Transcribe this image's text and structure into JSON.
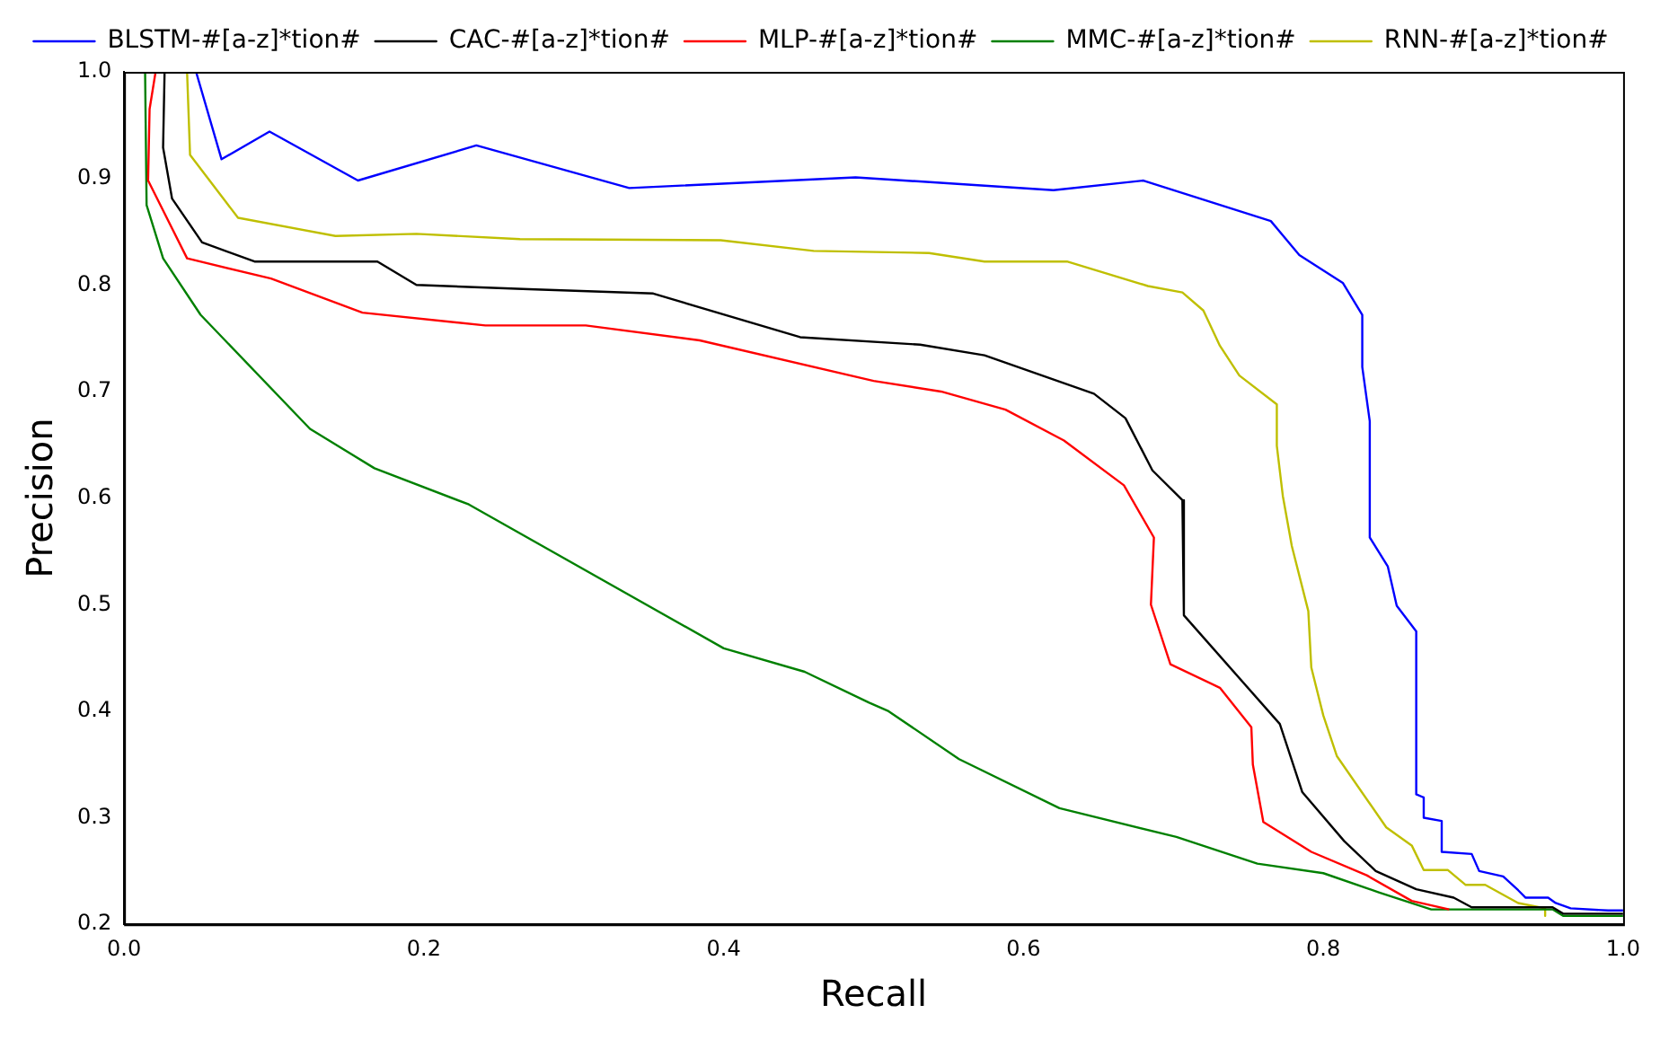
{
  "chart_data": {
    "type": "line",
    "xlabel": "Recall",
    "ylabel": "Precision",
    "xlim": [
      0,
      1
    ],
    "ylim": [
      0.2,
      1
    ],
    "xticks": [
      {
        "value": 0,
        "label": "0.0"
      },
      0.2,
      0.4,
      0.6,
      0.8,
      {
        "value": 1,
        "label": "1.0"
      }
    ],
    "yticks": [
      0.2,
      0.3,
      0.4,
      0.5,
      0.6,
      0.7,
      0.8,
      0.9,
      {
        "value": 1,
        "label": "1.0"
      }
    ],
    "grid": false,
    "legend": "top",
    "marker": "none",
    "line_style": "solid",
    "series": [
      {
        "name": "BLSTM-#[a-z]*tion#",
        "color": "#0000ff",
        "x": [
          0.048,
          0.065,
          0.097,
          0.156,
          0.235,
          0.337,
          0.488,
          0.62,
          0.68,
          0.765,
          0.784,
          0.813,
          0.826,
          0.826,
          0.831,
          0.831,
          0.843,
          0.849,
          0.862,
          0.862,
          0.867,
          0.867,
          0.879,
          0.879,
          0.899,
          0.904,
          0.92,
          0.93,
          0.935,
          0.95,
          0.955,
          0.965,
          0.99,
          1.0
        ],
        "values": [
          1.0,
          0.918,
          0.944,
          0.898,
          0.931,
          0.891,
          0.901,
          0.889,
          0.898,
          0.86,
          0.828,
          0.802,
          0.772,
          0.723,
          0.672,
          0.563,
          0.536,
          0.499,
          0.475,
          0.322,
          0.319,
          0.3,
          0.297,
          0.268,
          0.266,
          0.25,
          0.245,
          0.232,
          0.225,
          0.225,
          0.22,
          0.215,
          0.213,
          0.213
        ]
      },
      {
        "name": "CAC-#[a-z]*tion#",
        "color": "#000000",
        "x": [
          0.027,
          0.026,
          0.032,
          0.052,
          0.087,
          0.169,
          0.195,
          0.27,
          0.353,
          0.451,
          0.531,
          0.574,
          0.647,
          0.668,
          0.686,
          0.706,
          0.707,
          0.771,
          0.786,
          0.814,
          0.835,
          0.862,
          0.887,
          0.899,
          0.953,
          0.96,
          1.0
        ],
        "values": [
          1.0,
          0.929,
          0.881,
          0.84,
          0.822,
          0.822,
          0.8,
          0.796,
          0.792,
          0.751,
          0.744,
          0.734,
          0.698,
          0.675,
          0.626,
          0.598,
          0.49,
          0.388,
          0.324,
          0.278,
          0.25,
          0.233,
          0.225,
          0.216,
          0.216,
          0.21,
          0.21
        ]
      },
      {
        "name": "MLP-#[a-z]*tion#",
        "color": "#ff0000",
        "x": [
          0.021,
          0.017,
          0.016,
          0.042,
          0.098,
          0.159,
          0.241,
          0.308,
          0.384,
          0.5,
          0.545,
          0.588,
          0.627,
          0.667,
          0.687,
          0.685,
          0.698,
          0.731,
          0.752,
          0.753,
          0.76,
          0.792,
          0.829,
          0.859,
          0.884
        ],
        "values": [
          1.0,
          0.965,
          0.898,
          0.825,
          0.806,
          0.774,
          0.762,
          0.762,
          0.748,
          0.71,
          0.7,
          0.683,
          0.654,
          0.612,
          0.563,
          0.5,
          0.444,
          0.422,
          0.385,
          0.35,
          0.296,
          0.268,
          0.246,
          0.222,
          0.214
        ]
      },
      {
        "name": "MMC-#[a-z]*tion#",
        "color": "#008000",
        "x": [
          0.014,
          0.015,
          0.026,
          0.051,
          0.124,
          0.167,
          0.23,
          0.4,
          0.454,
          0.497,
          0.51,
          0.557,
          0.624,
          0.702,
          0.756,
          0.8,
          0.837,
          0.872,
          0.953,
          0.96,
          1.0
        ],
        "values": [
          1.0,
          0.875,
          0.825,
          0.772,
          0.665,
          0.628,
          0.594,
          0.459,
          0.437,
          0.408,
          0.4,
          0.355,
          0.309,
          0.282,
          0.257,
          0.248,
          0.23,
          0.214,
          0.214,
          0.208,
          0.208
        ]
      },
      {
        "name": "RNN-#[a-z]*tion#",
        "color": "#bfbf00",
        "x": [
          0.042,
          0.044,
          0.076,
          0.141,
          0.195,
          0.264,
          0.398,
          0.46,
          0.537,
          0.574,
          0.629,
          0.683,
          0.706,
          0.72,
          0.731,
          0.744,
          0.769,
          0.769,
          0.773,
          0.779,
          0.79,
          0.792,
          0.8,
          0.809,
          0.842,
          0.859,
          0.867,
          0.883,
          0.895,
          0.908,
          0.93,
          0.948,
          0.948
        ],
        "values": [
          1.0,
          0.922,
          0.863,
          0.846,
          0.848,
          0.843,
          0.842,
          0.832,
          0.83,
          0.822,
          0.822,
          0.799,
          0.793,
          0.776,
          0.743,
          0.715,
          0.688,
          0.649,
          0.602,
          0.555,
          0.494,
          0.441,
          0.396,
          0.358,
          0.291,
          0.274,
          0.251,
          0.251,
          0.237,
          0.237,
          0.22,
          0.215,
          0.208
        ]
      }
    ]
  }
}
